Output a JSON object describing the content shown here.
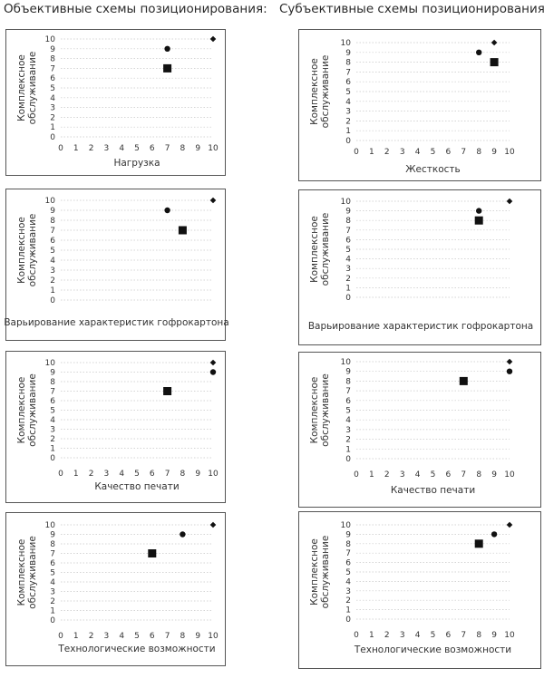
{
  "headings": {
    "objective": "Объективные схемы позиционирования:",
    "subjective": "Субъективные схемы позиционирования:"
  },
  "chart_data": [
    {
      "id": "c1",
      "type": "scatter",
      "ylabel": "Комплексное обслуживание",
      "xlabel": "Нагрузка",
      "x_ticks": [
        0,
        1,
        2,
        3,
        4,
        5,
        6,
        7,
        8,
        9,
        10
      ],
      "y_ticks": [
        0,
        1,
        2,
        3,
        4,
        5,
        6,
        7,
        8,
        9,
        10
      ],
      "xlim": [
        0,
        10
      ],
      "ylim": [
        0,
        10
      ],
      "points": [
        {
          "marker": "diamond",
          "x": 10,
          "y": 10
        },
        {
          "marker": "circle",
          "x": 7,
          "y": 9
        },
        {
          "marker": "square",
          "x": 7,
          "y": 7
        }
      ]
    },
    {
      "id": "c2",
      "type": "scatter",
      "ylabel": "Комплексное обслуживание",
      "xlabel": "Жесткость",
      "x_ticks": [
        0,
        1,
        2,
        3,
        4,
        5,
        6,
        7,
        8,
        9,
        10
      ],
      "y_ticks": [
        0,
        1,
        2,
        3,
        4,
        5,
        6,
        7,
        8,
        9,
        10
      ],
      "xlim": [
        0,
        10
      ],
      "ylim": [
        0,
        10
      ],
      "points": [
        {
          "marker": "diamond",
          "x": 9,
          "y": 10
        },
        {
          "marker": "circle",
          "x": 8,
          "y": 9
        },
        {
          "marker": "square",
          "x": 9,
          "y": 8
        }
      ]
    },
    {
      "id": "c3",
      "type": "scatter",
      "ylabel": "Комплексное обслуживание",
      "xlabel": "Варьирование характеристик гофрокартона",
      "x_ticks": [],
      "y_ticks": [
        0,
        1,
        2,
        3,
        4,
        5,
        6,
        7,
        8,
        9,
        10
      ],
      "xlim": [
        0,
        10
      ],
      "ylim": [
        0,
        10
      ],
      "points": [
        {
          "marker": "diamond",
          "x": 10,
          "y": 10
        },
        {
          "marker": "circle",
          "x": 7,
          "y": 9
        },
        {
          "marker": "square",
          "x": 8,
          "y": 7
        }
      ]
    },
    {
      "id": "c4",
      "type": "scatter",
      "ylabel": "Комплексное обслуживание",
      "xlabel": "Варьирование характеристик гофрокартона",
      "x_ticks": [],
      "y_ticks": [
        0,
        1,
        2,
        3,
        4,
        5,
        6,
        7,
        8,
        9,
        10
      ],
      "xlim": [
        0,
        10
      ],
      "ylim": [
        0,
        10
      ],
      "points": [
        {
          "marker": "diamond",
          "x": 10,
          "y": 10
        },
        {
          "marker": "circle",
          "x": 8,
          "y": 9
        },
        {
          "marker": "square",
          "x": 8,
          "y": 8
        }
      ]
    },
    {
      "id": "c5",
      "type": "scatter",
      "ylabel": "Комплексное обслуживание",
      "xlabel": "Качество печати",
      "x_ticks": [
        0,
        1,
        2,
        3,
        4,
        5,
        6,
        7,
        8,
        9,
        10
      ],
      "y_ticks": [
        0,
        1,
        2,
        3,
        4,
        5,
        6,
        7,
        8,
        9,
        10
      ],
      "xlim": [
        0,
        10
      ],
      "ylim": [
        0,
        10
      ],
      "points": [
        {
          "marker": "diamond",
          "x": 10,
          "y": 10
        },
        {
          "marker": "circle",
          "x": 10,
          "y": 9
        },
        {
          "marker": "square",
          "x": 7,
          "y": 7
        }
      ]
    },
    {
      "id": "c6",
      "type": "scatter",
      "ylabel": "Комплексное обслуживание",
      "xlabel": "Качество печати",
      "x_ticks": [
        0,
        1,
        2,
        3,
        4,
        5,
        6,
        7,
        8,
        9,
        10
      ],
      "y_ticks": [
        0,
        1,
        2,
        3,
        4,
        5,
        6,
        7,
        8,
        9,
        10
      ],
      "xlim": [
        0,
        10
      ],
      "ylim": [
        0,
        10
      ],
      "points": [
        {
          "marker": "diamond",
          "x": 10,
          "y": 10
        },
        {
          "marker": "circle",
          "x": 10,
          "y": 9
        },
        {
          "marker": "square",
          "x": 7,
          "y": 8
        }
      ]
    },
    {
      "id": "c7",
      "type": "scatter",
      "ylabel": "Комплексное обслуживание",
      "xlabel": "Технологические возможности",
      "x_ticks": [
        0,
        1,
        2,
        3,
        4,
        5,
        6,
        7,
        8,
        9,
        10
      ],
      "y_ticks": [
        0,
        1,
        2,
        3,
        4,
        5,
        6,
        7,
        8,
        9,
        10
      ],
      "xlim": [
        0,
        10
      ],
      "ylim": [
        0,
        10
      ],
      "points": [
        {
          "marker": "diamond",
          "x": 10,
          "y": 10
        },
        {
          "marker": "circle",
          "x": 8,
          "y": 9
        },
        {
          "marker": "square",
          "x": 6,
          "y": 7
        }
      ]
    },
    {
      "id": "c8",
      "type": "scatter",
      "ylabel": "Комплексное обслуживание",
      "xlabel": "Технологические возможности",
      "x_ticks": [
        0,
        1,
        2,
        3,
        4,
        5,
        6,
        7,
        8,
        9,
        10
      ],
      "y_ticks": [
        0,
        1,
        2,
        3,
        4,
        5,
        6,
        7,
        8,
        9,
        10
      ],
      "xlim": [
        0,
        10
      ],
      "ylim": [
        0,
        10
      ],
      "points": [
        {
          "marker": "diamond",
          "x": 10,
          "y": 10
        },
        {
          "marker": "circle",
          "x": 9,
          "y": 9
        },
        {
          "marker": "square",
          "x": 8,
          "y": 8
        }
      ]
    }
  ]
}
